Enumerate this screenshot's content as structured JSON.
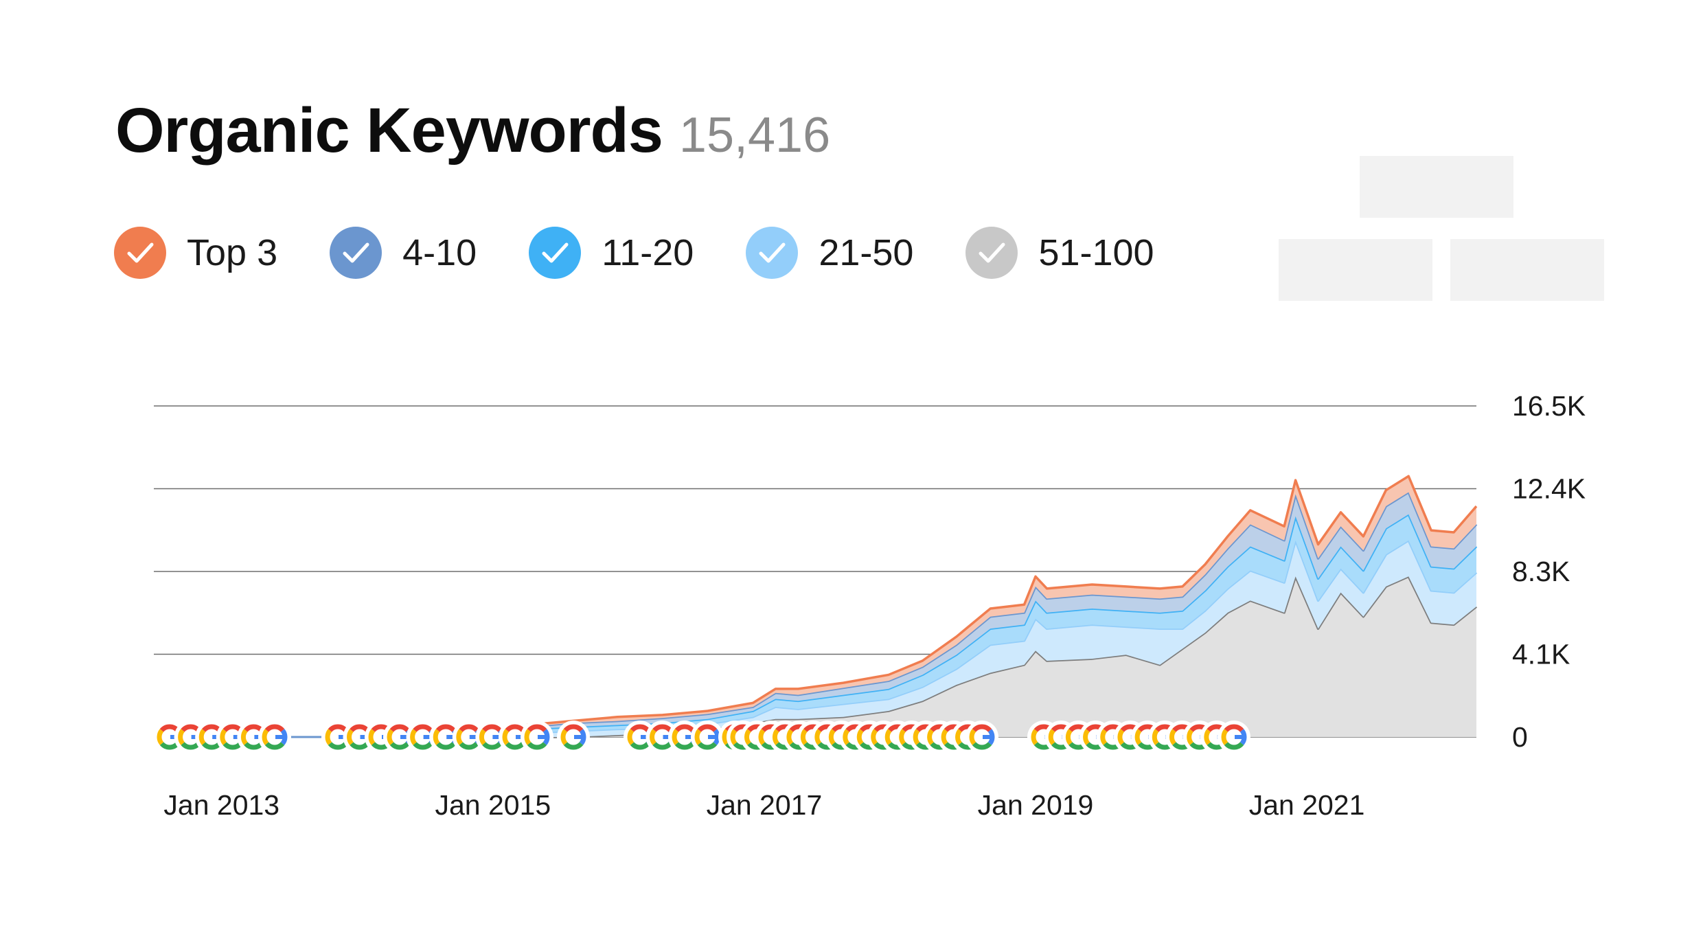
{
  "header": {
    "title": "Organic Keywords",
    "count": "15,416"
  },
  "legend": [
    {
      "label": "Top 3",
      "color": "#f07d4f"
    },
    {
      "label": "4-10",
      "color": "#6b96cf"
    },
    {
      "label": "11-20",
      "color": "#3fb1f5"
    },
    {
      "label": "21-50",
      "color": "#93cefa"
    },
    {
      "label": "51-100",
      "color": "#c8c8c8"
    }
  ],
  "chart_data": {
    "type": "area",
    "stacked": true,
    "x_tick_labels": [
      "Jan 2013",
      "Jan 2015",
      "Jan 2017",
      "Jan 2019",
      "Jan 2021"
    ],
    "y_tick_labels": [
      "16.5K",
      "12.4K",
      "8.3K",
      "4.1K",
      "0"
    ],
    "ylim": [
      0,
      16500
    ],
    "grid": true,
    "x": [
      "2015-04",
      "2015-08",
      "2015-12",
      "2016-04",
      "2016-08",
      "2016-12",
      "2017-02",
      "2017-04",
      "2017-08",
      "2017-12",
      "2018-03",
      "2018-06",
      "2018-09",
      "2018-12",
      "2019-01",
      "2019-02",
      "2019-06",
      "2019-09",
      "2019-12",
      "2020-02",
      "2020-04",
      "2020-06",
      "2020-08",
      "2020-11",
      "2020-12",
      "2021-02",
      "2021-04",
      "2021-06",
      "2021-08",
      "2021-10",
      "2021-12",
      "2022-02",
      "2022-04"
    ],
    "series": [
      {
        "name": "51-100",
        "color": "#c8c8c8",
        "values": [
          0,
          0,
          100,
          200,
          400,
          700,
          900,
          900,
          1000,
          1300,
          1800,
          2600,
          3200,
          3600,
          4300,
          3800,
          3900,
          4100,
          3600,
          4400,
          5200,
          6200,
          6800,
          6200,
          8000,
          5400,
          7200,
          6000,
          7500,
          8000,
          5700,
          5600,
          6500
        ]
      },
      {
        "name": "21-50",
        "color": "#93cefa",
        "values": [
          200,
          300,
          300,
          250,
          250,
          300,
          600,
          500,
          650,
          600,
          700,
          800,
          1400,
          1200,
          1600,
          1600,
          1700,
          1400,
          1800,
          1000,
          1100,
          1200,
          1500,
          1500,
          1800,
          1400,
          1200,
          1200,
          1600,
          1800,
          1600,
          1600,
          1700
        ]
      },
      {
        "name": "11-20",
        "color": "#3fb1f5",
        "values": [
          200,
          200,
          200,
          250,
          250,
          300,
          400,
          400,
          450,
          500,
          600,
          700,
          800,
          800,
          900,
          800,
          800,
          800,
          800,
          900,
          1000,
          1100,
          1200,
          1100,
          1200,
          1100,
          1100,
          1100,
          1300,
          1300,
          1200,
          1200,
          1300
        ]
      },
      {
        "name": "4-10",
        "color": "#6b96cf",
        "values": [
          100,
          200,
          200,
          250,
          250,
          200,
          300,
          300,
          350,
          400,
          400,
          500,
          600,
          600,
          700,
          700,
          700,
          700,
          700,
          700,
          800,
          900,
          1100,
          1000,
          1100,
          1000,
          1000,
          1000,
          1100,
          1100,
          1000,
          1000,
          1100
        ]
      },
      {
        "name": "Top 3",
        "color": "#f07d4f",
        "values": [
          100,
          100,
          200,
          150,
          150,
          200,
          200,
          300,
          250,
          300,
          300,
          400,
          400,
          400,
          500,
          500,
          500,
          500,
          500,
          500,
          500,
          600,
          700,
          700,
          700,
          700,
          700,
          700,
          800,
          800,
          800,
          800,
          900
        ]
      }
    ]
  }
}
